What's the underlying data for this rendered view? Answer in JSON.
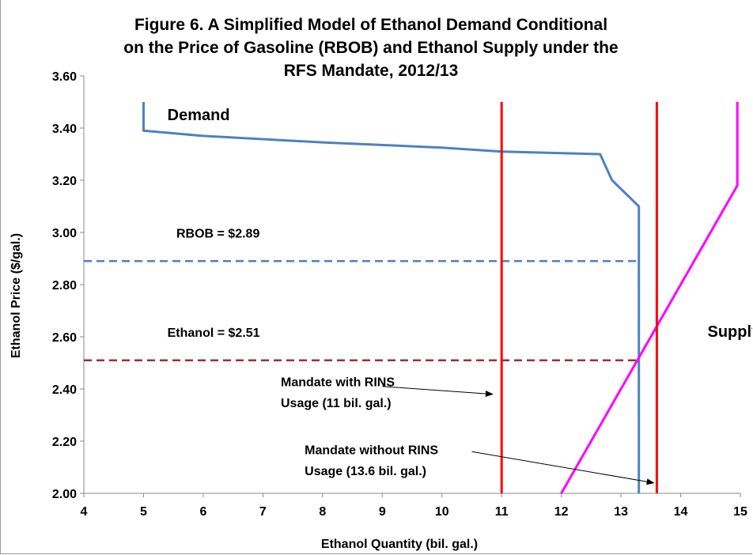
{
  "chart_data": {
    "type": "line",
    "title": [
      "Figure 6.  A Simplified Model of Ethanol Demand Conditional",
      "on the Price of Gasoline (RBOB)  and Ethanol Supply under the",
      "RFS Mandate, 2012/13"
    ],
    "xlabel": "Ethanol Quantity (bil. gal.)",
    "ylabel": "Ethanol Price ($/gal.)",
    "xlim": [
      4,
      15
    ],
    "ylim": [
      2.0,
      3.6
    ],
    "x_ticks": [
      "4",
      "5",
      "6",
      "7",
      "8",
      "9",
      "10",
      "11",
      "12",
      "13",
      "14",
      "15"
    ],
    "y_ticks": [
      "2.00",
      "2.20",
      "2.40",
      "2.60",
      "2.80",
      "3.00",
      "3.20",
      "3.40",
      "3.60"
    ],
    "grid": false,
    "series": [
      {
        "name": "Demand",
        "color": "#4f81bd",
        "style": "solid",
        "points": [
          [
            5.0,
            3.5
          ],
          [
            5.0,
            3.39
          ],
          [
            6.0,
            3.37
          ],
          [
            8.0,
            3.345
          ],
          [
            10.0,
            3.325
          ],
          [
            11.0,
            3.31
          ],
          [
            12.65,
            3.3
          ],
          [
            12.85,
            3.2
          ],
          [
            13.3,
            3.1
          ],
          [
            13.3,
            2.0
          ]
        ]
      },
      {
        "name": "Supply",
        "color": "#ff00ff",
        "style": "solid",
        "points": [
          [
            12.0,
            2.0
          ],
          [
            14.95,
            3.18
          ],
          [
            14.95,
            3.5
          ]
        ]
      },
      {
        "name": "RBOB = $2.89",
        "color": "#4f81bd",
        "style": "dashed",
        "points": [
          [
            4.0,
            2.89
          ],
          [
            13.3,
            2.89
          ]
        ]
      },
      {
        "name": "Ethanol = $2.51",
        "color": "#a0302c",
        "style": "dashed",
        "points": [
          [
            4.0,
            2.51
          ],
          [
            13.3,
            2.51
          ]
        ]
      },
      {
        "name": "Mandate with RINS Usage (11 bil. gal.)",
        "color": "#ff0000",
        "style": "solid",
        "points": [
          [
            11.0,
            2.0
          ],
          [
            11.0,
            3.5
          ]
        ]
      },
      {
        "name": "Mandate without RINS Usage (13.6 bil. gal.)",
        "color": "#ff0000",
        "style": "solid",
        "points": [
          [
            13.6,
            2.0
          ],
          [
            13.6,
            3.5
          ]
        ]
      }
    ],
    "annotations": [
      {
        "id": "demand",
        "text": "Demand",
        "x": 5.4,
        "y": 3.43,
        "size": "big"
      },
      {
        "id": "supply",
        "text": "Supply",
        "x": 14.45,
        "y": 2.6,
        "size": "big"
      },
      {
        "id": "rbob",
        "text": "RBOB = $2.89",
        "x": 5.55,
        "y": 2.98,
        "size": "normal"
      },
      {
        "id": "ethanol",
        "text": "Ethanol = $2.51",
        "x": 5.4,
        "y": 2.6,
        "size": "normal"
      },
      {
        "id": "mandate-rins-1",
        "text": "Mandate with RINS",
        "x": 7.3,
        "y": 2.41,
        "size": "normal"
      },
      {
        "id": "mandate-rins-2",
        "text": "Usage (11 bil. gal.)",
        "x": 7.3,
        "y": 2.33,
        "size": "normal"
      },
      {
        "id": "mandate-norins-1",
        "text": "Mandate without RINS",
        "x": 7.7,
        "y": 2.15,
        "size": "normal"
      },
      {
        "id": "mandate-norins-2",
        "text": "Usage (13.6 bil. gal.)",
        "x": 7.7,
        "y": 2.07,
        "size": "normal"
      }
    ],
    "arrows": [
      {
        "id": "arrow-mandate-rins",
        "from": [
          9.0,
          2.41
        ],
        "to": [
          10.85,
          2.38
        ]
      },
      {
        "id": "arrow-mandate-norins",
        "from": [
          10.5,
          2.16
        ],
        "to": [
          13.55,
          2.04
        ]
      }
    ]
  }
}
